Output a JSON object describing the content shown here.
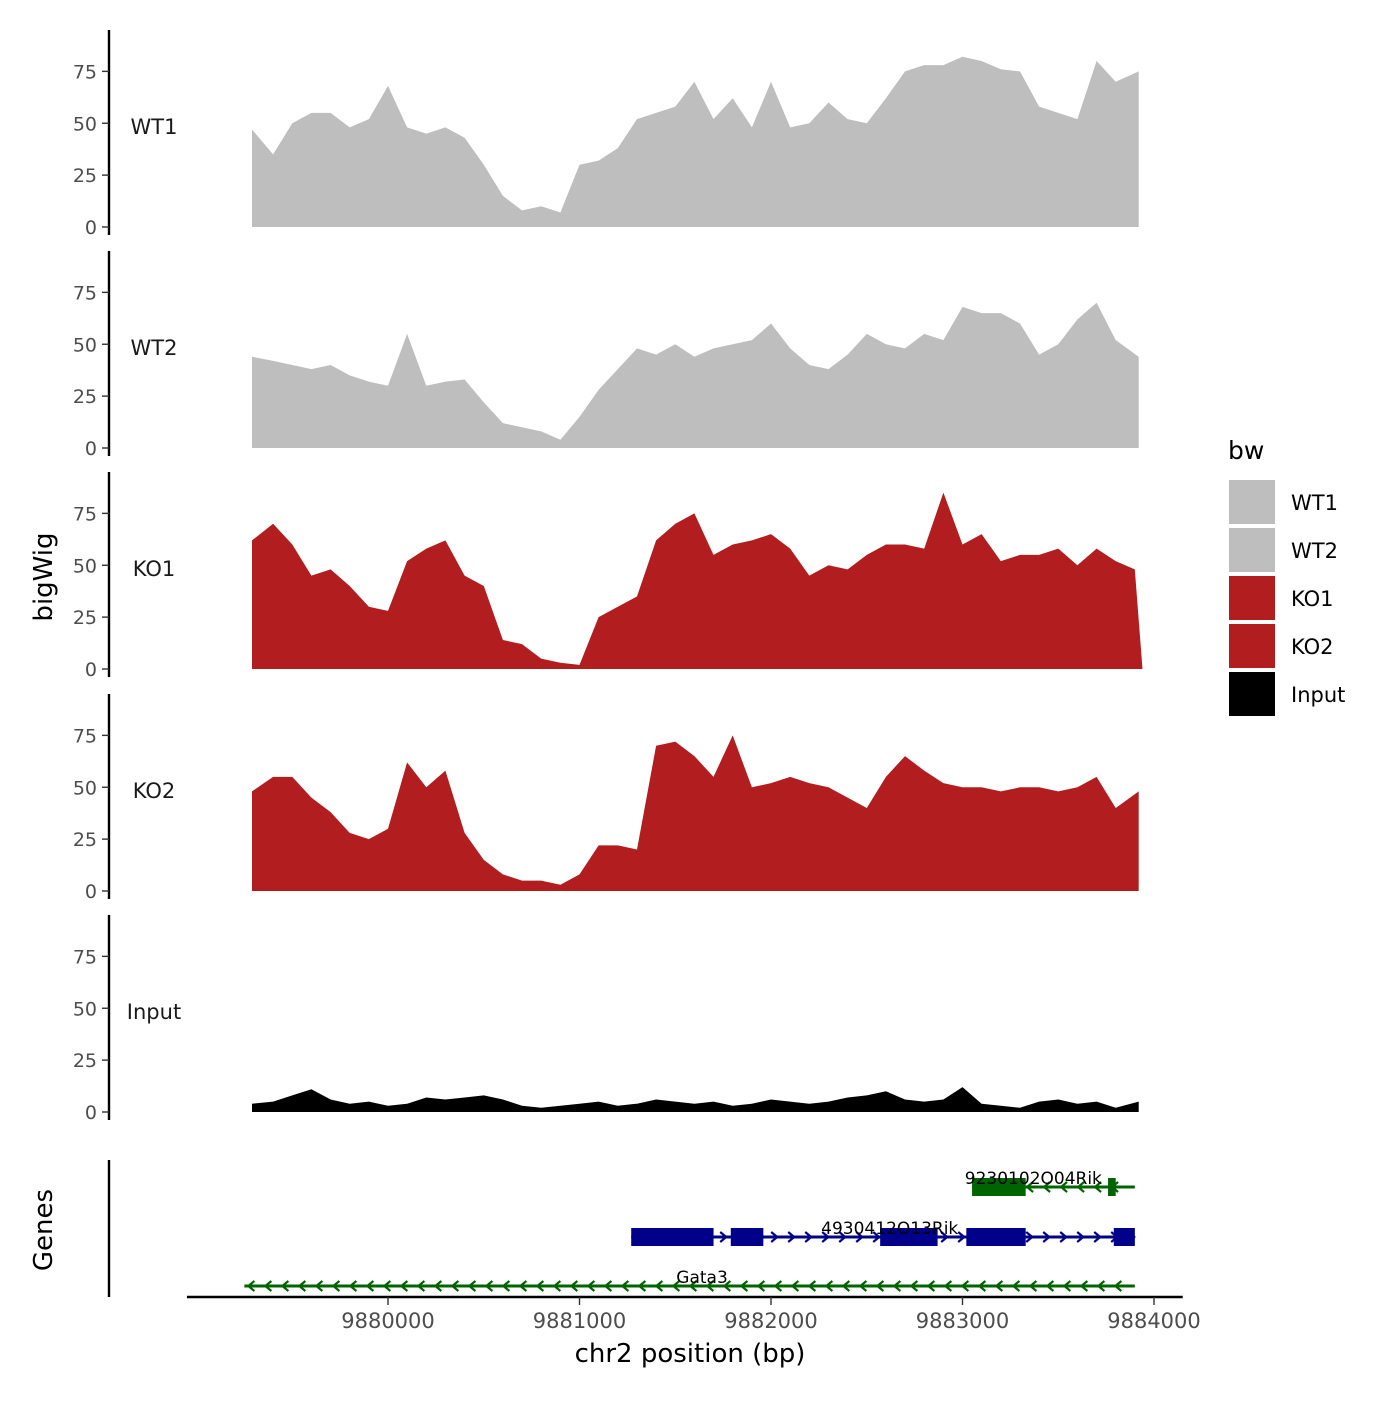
{
  "chart_data": {
    "type": "area",
    "layout": "stacked-tracks",
    "y_axis_label": "bigWig",
    "x_axis_label": "chr2 position (bp)",
    "x_ticks": [
      9880000,
      9881000,
      9882000,
      9883000,
      9884000
    ],
    "x_range": [
      9878950,
      9884150
    ],
    "y_ticks": [
      0,
      25,
      50,
      75
    ],
    "y_range": [
      0,
      95
    ],
    "legend": {
      "title": "bw",
      "position": "right",
      "entries": [
        {
          "label": "WT1",
          "color": "#bebebe"
        },
        {
          "label": "WT2",
          "color": "#bebebe"
        },
        {
          "label": "KO1",
          "color": "#b21e1f"
        },
        {
          "label": "KO2",
          "color": "#b21e1f"
        },
        {
          "label": "Input",
          "color": "#000000"
        }
      ]
    },
    "tracks": [
      {
        "name": "WT1",
        "color": "#bebebe",
        "x": [
          9879290,
          9879400,
          9879500,
          9879600,
          9879700,
          9879800,
          9879900,
          9880000,
          9880100,
          9880200,
          9880300,
          9880400,
          9880500,
          9880600,
          9880700,
          9880800,
          9880900,
          9881000,
          9881100,
          9881200,
          9881300,
          9881400,
          9881500,
          9881600,
          9881700,
          9881800,
          9881900,
          9882000,
          9882100,
          9882200,
          9882300,
          9882400,
          9882500,
          9882600,
          9882700,
          9882800,
          9882900,
          9883000,
          9883100,
          9883200,
          9883300,
          9883400,
          9883500,
          9883600,
          9883700,
          9883800,
          9883920
        ],
        "y": [
          47,
          35,
          50,
          55,
          55,
          48,
          52,
          68,
          48,
          45,
          48,
          43,
          30,
          15,
          8,
          10,
          7,
          30,
          32,
          38,
          52,
          55,
          58,
          70,
          52,
          62,
          48,
          70,
          48,
          50,
          60,
          52,
          50,
          62,
          75,
          78,
          78,
          82,
          80,
          76,
          75,
          58,
          55,
          52,
          80,
          70,
          75
        ]
      },
      {
        "name": "WT2",
        "color": "#bebebe",
        "x": [
          9879290,
          9879400,
          9879500,
          9879600,
          9879700,
          9879800,
          9879900,
          9880000,
          9880100,
          9880200,
          9880300,
          9880400,
          9880500,
          9880600,
          9880700,
          9880800,
          9880900,
          9881000,
          9881100,
          9881200,
          9881300,
          9881400,
          9881500,
          9881600,
          9881700,
          9881800,
          9881900,
          9882000,
          9882100,
          9882200,
          9882300,
          9882400,
          9882500,
          9882600,
          9882700,
          9882800,
          9882900,
          9883000,
          9883100,
          9883200,
          9883300,
          9883400,
          9883500,
          9883600,
          9883700,
          9883800,
          9883920
        ],
        "y": [
          44,
          42,
          40,
          38,
          40,
          35,
          32,
          30,
          55,
          30,
          32,
          33,
          22,
          12,
          10,
          8,
          4,
          15,
          28,
          38,
          48,
          45,
          50,
          44,
          48,
          50,
          52,
          60,
          48,
          40,
          38,
          45,
          55,
          50,
          48,
          55,
          52,
          68,
          65,
          65,
          60,
          45,
          50,
          62,
          70,
          52,
          44
        ]
      },
      {
        "name": "KO1",
        "color": "#b21e1f",
        "x": [
          9879290,
          9879400,
          9879500,
          9879600,
          9879700,
          9879800,
          9879900,
          9880000,
          9880100,
          9880200,
          9880300,
          9880400,
          9880500,
          9880600,
          9880700,
          9880800,
          9880900,
          9881000,
          9881100,
          9881200,
          9881300,
          9881400,
          9881500,
          9881600,
          9881700,
          9881800,
          9881900,
          9882000,
          9882100,
          9882200,
          9882300,
          9882400,
          9882500,
          9882600,
          9882700,
          9882800,
          9882900,
          9883000,
          9883100,
          9883200,
          9883300,
          9883400,
          9883500,
          9883600,
          9883700,
          9883800,
          9883900,
          9883940
        ],
        "y": [
          62,
          70,
          60,
          45,
          48,
          40,
          30,
          28,
          52,
          58,
          62,
          45,
          40,
          14,
          12,
          5,
          3,
          2,
          25,
          30,
          35,
          62,
          70,
          75,
          55,
          60,
          62,
          65,
          58,
          45,
          50,
          48,
          55,
          60,
          60,
          58,
          85,
          60,
          65,
          52,
          55,
          55,
          58,
          50,
          58,
          52,
          48,
          0
        ]
      },
      {
        "name": "KO2",
        "color": "#b21e1f",
        "x": [
          9879290,
          9879400,
          9879500,
          9879600,
          9879700,
          9879800,
          9879900,
          9880000,
          9880100,
          9880200,
          9880300,
          9880400,
          9880500,
          9880600,
          9880700,
          9880800,
          9880900,
          9881000,
          9881100,
          9881200,
          9881300,
          9881400,
          9881500,
          9881600,
          9881700,
          9881800,
          9881900,
          9882000,
          9882100,
          9882200,
          9882300,
          9882400,
          9882500,
          9882600,
          9882700,
          9882800,
          9882900,
          9883000,
          9883100,
          9883200,
          9883300,
          9883400,
          9883500,
          9883600,
          9883700,
          9883800,
          9883920
        ],
        "y": [
          48,
          55,
          55,
          45,
          38,
          28,
          25,
          30,
          62,
          50,
          58,
          28,
          15,
          8,
          5,
          5,
          3,
          8,
          22,
          22,
          20,
          70,
          72,
          65,
          55,
          75,
          50,
          52,
          55,
          52,
          50,
          45,
          40,
          55,
          65,
          58,
          52,
          50,
          50,
          48,
          50,
          50,
          48,
          50,
          55,
          40,
          48
        ]
      },
      {
        "name": "Input",
        "color": "#000000",
        "x": [
          9879290,
          9879400,
          9879500,
          9879600,
          9879700,
          9879800,
          9879900,
          9880000,
          9880100,
          9880200,
          9880300,
          9880400,
          9880500,
          9880600,
          9880700,
          9880800,
          9880900,
          9881000,
          9881100,
          9881200,
          9881300,
          9881400,
          9881500,
          9881600,
          9881700,
          9881800,
          9881900,
          9882000,
          9882100,
          9882200,
          9882300,
          9882400,
          9882500,
          9882600,
          9882700,
          9882800,
          9882900,
          9883000,
          9883100,
          9883200,
          9883300,
          9883400,
          9883500,
          9883600,
          9883700,
          9883800,
          9883920
        ],
        "y": [
          4,
          5,
          8,
          11,
          6,
          4,
          5,
          3,
          4,
          7,
          6,
          7,
          8,
          6,
          3,
          2,
          3,
          4,
          5,
          3,
          4,
          6,
          5,
          4,
          5,
          3,
          4,
          6,
          5,
          4,
          5,
          7,
          8,
          10,
          6,
          5,
          6,
          12,
          4,
          3,
          2,
          5,
          6,
          4,
          5,
          2,
          5
        ]
      }
    ],
    "genes_panel_label": "Genes",
    "genes": [
      {
        "name": "9230102O04Rik",
        "color": "#006400",
        "strand": "-",
        "start": 9883050,
        "end": 9883900,
        "exons": [
          [
            9883050,
            9883330
          ],
          [
            9883760,
            9883800
          ]
        ],
        "label_x": 9883370
      },
      {
        "name": "4930412O13Rik",
        "color": "#00008b",
        "strand": "+",
        "start": 9881270,
        "end": 9883900,
        "exons": [
          [
            9881270,
            9881700
          ],
          [
            9881790,
            9881960
          ],
          [
            9882570,
            9882870
          ],
          [
            9883020,
            9883330
          ],
          [
            9883790,
            9883900
          ]
        ],
        "label_x": 9882620
      },
      {
        "name": "Gata3",
        "color": "#006400",
        "strand": "-",
        "start": 9879250,
        "end": 9883900,
        "exons": [],
        "label_x": 9881640
      }
    ]
  }
}
